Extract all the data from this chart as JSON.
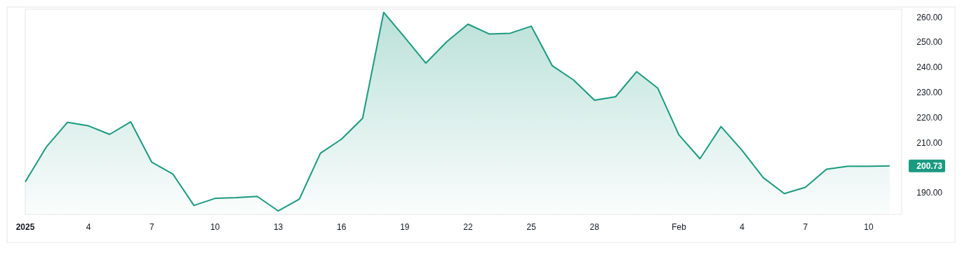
{
  "chart_data": {
    "type": "area",
    "x": [
      "2025-01-01",
      "2025-01-02",
      "2025-01-03",
      "2025-01-04",
      "2025-01-05",
      "2025-01-06",
      "2025-01-07",
      "2025-01-08",
      "2025-01-09",
      "2025-01-10",
      "2025-01-11",
      "2025-01-12",
      "2025-01-13",
      "2025-01-14",
      "2025-01-15",
      "2025-01-16",
      "2025-01-17",
      "2025-01-18",
      "2025-01-19",
      "2025-01-20",
      "2025-01-21",
      "2025-01-22",
      "2025-01-23",
      "2025-01-24",
      "2025-01-25",
      "2025-01-26",
      "2025-01-27",
      "2025-01-28",
      "2025-01-29",
      "2025-01-30",
      "2025-01-31",
      "2025-02-01",
      "2025-02-02",
      "2025-02-03",
      "2025-02-04",
      "2025-02-05",
      "2025-02-06",
      "2025-02-07",
      "2025-02-08",
      "2025-02-09",
      "2025-02-10",
      "2025-02-11"
    ],
    "series": [
      {
        "color": "#1a9a80",
        "values": [
          194.4,
          208.3,
          218.1,
          216.7,
          213.3,
          218.3,
          202.2,
          197.5,
          185.0,
          187.8,
          188.1,
          188.6,
          182.8,
          187.5,
          205.8,
          211.4,
          219.7,
          261.9,
          251.9,
          241.7,
          250.3,
          257.2,
          253.3,
          253.6,
          256.4,
          240.6,
          235.0,
          226.9,
          228.3,
          238.3,
          231.7,
          213.1,
          203.6,
          216.4,
          206.9,
          196.1,
          189.7,
          192.2,
          199.4,
          200.6,
          200.6,
          200.73
        ]
      }
    ],
    "xlim": [
      "2025-01-01",
      "2025-02-11T12:00"
    ],
    "xticks": [
      {
        "value": "2025-01-01",
        "label": "2025"
      },
      {
        "value": "2025-01-04",
        "label": "4"
      },
      {
        "value": "2025-01-07",
        "label": "7"
      },
      {
        "value": "2025-01-10",
        "label": "10"
      },
      {
        "value": "2025-01-13",
        "label": "13"
      },
      {
        "value": "2025-01-16",
        "label": "16"
      },
      {
        "value": "2025-01-19",
        "label": "19"
      },
      {
        "value": "2025-01-22",
        "label": "22"
      },
      {
        "value": "2025-01-25",
        "label": "25"
      },
      {
        "value": "2025-01-28",
        "label": "28"
      },
      {
        "value": "2025-02-01",
        "label": "Feb"
      },
      {
        "value": "2025-02-04",
        "label": "4"
      },
      {
        "value": "2025-02-07",
        "label": "7"
      },
      {
        "value": "2025-02-10",
        "label": "10"
      }
    ],
    "ylim": [
      181.4,
      263.2
    ],
    "yticks": [
      {
        "value": 190,
        "label": "190.00"
      },
      {
        "value": 210,
        "label": "210.00"
      },
      {
        "value": 220,
        "label": "220.00"
      },
      {
        "value": 230,
        "label": "230.00"
      },
      {
        "value": 240,
        "label": "240.00"
      },
      {
        "value": 250,
        "label": "250.00"
      },
      {
        "value": 260,
        "label": "260.00"
      }
    ],
    "annotations": [
      "200.73"
    ],
    "grid": false
  }
}
